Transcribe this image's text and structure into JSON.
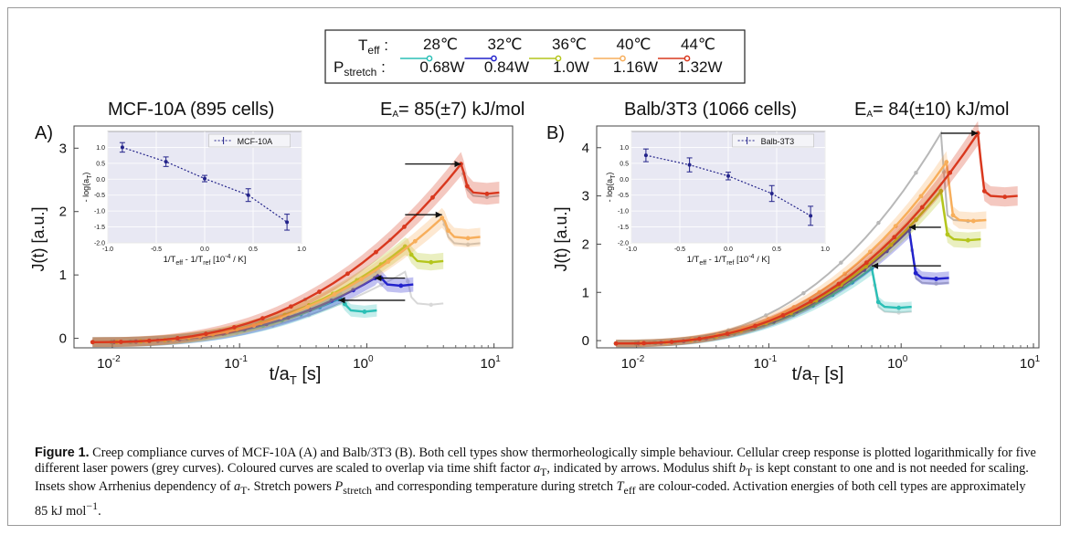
{
  "legend": {
    "t_label": "T",
    "t_sub": "eff",
    "p_label": "P",
    "p_sub": "stretch",
    "items": [
      {
        "temp": "28℃",
        "power": "0.68W",
        "color": "#2bbfb6"
      },
      {
        "temp": "32℃",
        "power": "0.84W",
        "color": "#2222cc"
      },
      {
        "temp": "36℃",
        "power": "1.0W",
        "color": "#b4c51c"
      },
      {
        "temp": "40℃",
        "power": "1.16W",
        "color": "#f7ae5b"
      },
      {
        "temp": "44℃",
        "power": "1.32W",
        "color": "#d9381e"
      }
    ]
  },
  "panels": [
    {
      "letter": "A)",
      "title": "MCF-10A  (895 cells)",
      "energy_prefix": "E",
      "energy_sub": "A",
      "energy_value": "= 85(±7) kJ/mol",
      "inset_legend": "MCF-10A"
    },
    {
      "letter": "B)",
      "title": "Balb/3T3 (1066 cells)",
      "energy_prefix": "E",
      "energy_sub": "A",
      "energy_value": "= 84(±10) kJ/mol",
      "inset_legend": "Balb-3T3"
    }
  ],
  "axes": {
    "ylabel": "J(t) [a.u.]",
    "xlabel_main": "t/a",
    "xlabel_sub": "T",
    "xlabel_unit": " [s]",
    "x_ticks": [
      {
        "base": "10",
        "exp": "-2"
      },
      {
        "base": "10",
        "exp": "-1"
      },
      {
        "base": "10",
        "exp": "0"
      },
      {
        "base": "10",
        "exp": "1"
      }
    ],
    "inset_ylabel": "- log(a",
    "inset_ylabel_sub": "T",
    "inset_xlabel": "1/T",
    "inset_xlabel_sub1": "eff",
    "inset_xlabel_mid": " - 1/T",
    "inset_xlabel_sub2": "ref",
    "inset_xlabel_unit": " [10",
    "inset_xlabel_exp": "-4",
    "inset_xlabel_end": " / K]",
    "inset_x_ticks": [
      "-1.0",
      "-0.5",
      "0.0",
      "0.5",
      "1.0"
    ],
    "inset_y_ticks": [
      "1.0",
      "0.5",
      "0.0",
      "-0.5",
      "-1.0",
      "-1.5",
      "-2.0"
    ]
  },
  "caption": {
    "label": "Figure 1.",
    "t1": " Creep compliance curves of MCF-10A (A) and Balb/3T3 (B). Both cell types show thermorheologically simple behaviour. Cellular creep response is plotted logarithmically for five different laser powers (grey curves). Coloured curves are scaled to overlap via time shift factor ",
    "aT_a": "a",
    "aT_T": "T",
    "t2": ", indicated by arrows. Modulus shift ",
    "bT_b": "b",
    "bT_T": "T",
    "t3": " is kept constant to one and is not needed for scaling. Insets show Arrhenius dependency of ",
    "t4": ". Stretch powers ",
    "P": "P",
    "P_sub": "stretch",
    "t5": " and corresponding temperature during stretch ",
    "T": "T",
    "T_sub": "eff",
    "t6": " are colour-coded. Activation energies of both cell types are approximately 85 kJ mol",
    "t6_exp": "−1",
    "t7": "."
  },
  "chart_data": [
    {
      "type": "line",
      "title": "MCF-10A  (895 cells)",
      "xlabel": "t/aT [s]",
      "ylabel": "J(t) [a.u.]",
      "xscale": "log",
      "xlim": [
        0.005,
        14
      ],
      "ylim": [
        -0.15,
        3.35
      ],
      "y_ticks": [
        0,
        1,
        2,
        3
      ],
      "stretch_end": [
        0.6,
        1.16,
        2.0,
        3.9,
        5.5
      ],
      "peak": [
        0.62,
        0.95,
        1.45,
        1.9,
        2.75
      ],
      "plateau": [
        0.44,
        0.85,
        1.22,
        1.6,
        2.3
      ],
      "grey_stretch_end": [
        2.0,
        3.9,
        5.5
      ],
      "grey_peak": [
        1.05,
        1.9,
        2.75
      ],
      "grey_plateau": [
        0.55,
        1.5,
        2.25
      ],
      "arrows": [
        {
          "from_x": 2.0,
          "to_x": 0.6,
          "y": 0.6
        },
        {
          "from_x": 2.0,
          "to_x": 1.16,
          "y": 0.95
        },
        {
          "from_x": 2.0,
          "to_x": 3.9,
          "y": 1.95
        },
        {
          "from_x": 2.0,
          "to_x": 5.5,
          "y": 2.75
        }
      ],
      "legend_position": "top-center",
      "series": [
        {
          "name": "28℃ / 0.68W"
        },
        {
          "name": "32℃ / 0.84W"
        },
        {
          "name": "36℃ / 1.0W"
        },
        {
          "name": "40℃ / 1.16W"
        },
        {
          "name": "44℃ / 1.32W"
        }
      ],
      "inset": {
        "type": "line",
        "legend": "MCF-10A",
        "x": [
          -0.85,
          -0.4,
          0.0,
          0.45,
          0.85
        ],
        "y": [
          1.0,
          0.55,
          0.02,
          -0.5,
          -1.35
        ],
        "yerr": [
          0.15,
          0.15,
          0.1,
          0.2,
          0.25
        ],
        "xlim": [
          -1.0,
          1.0
        ],
        "ylim": [
          -2.0,
          1.5
        ]
      }
    },
    {
      "type": "line",
      "title": "Balb/3T3 (1066 cells)",
      "xlabel": "t/aT [s]",
      "ylabel": "J(t) [a.u.]",
      "xscale": "log",
      "xlim": [
        0.005,
        11
      ],
      "ylim": [
        -0.15,
        4.45
      ],
      "y_ticks": [
        0,
        1,
        2,
        3,
        4
      ],
      "stretch_end": [
        0.6,
        1.15,
        2.0,
        2.2,
        3.8
      ],
      "peak": [
        1.5,
        2.3,
        3.1,
        3.7,
        4.3
      ],
      "plateau": [
        0.7,
        1.3,
        2.1,
        2.5,
        3.0
      ],
      "grey_stretch_end": [
        0.6,
        1.15,
        2.0
      ],
      "grey_peak": [
        1.5,
        2.35,
        4.3
      ],
      "grey_plateau": [
        0.6,
        1.2,
        2.5
      ],
      "arrows": [
        {
          "from_x": 2.0,
          "to_x": 0.6,
          "y": 1.55
        },
        {
          "from_x": 2.0,
          "to_x": 1.15,
          "y": 2.35
        },
        {
          "from_x": 2.0,
          "to_x": 3.8,
          "y": 4.3
        }
      ],
      "legend_position": "top-center",
      "series": [
        {
          "name": "28℃ / 0.68W"
        },
        {
          "name": "32℃ / 0.84W"
        },
        {
          "name": "36℃ / 1.0W"
        },
        {
          "name": "40℃ / 1.16W"
        },
        {
          "name": "44℃ / 1.32W"
        }
      ],
      "inset": {
        "type": "line",
        "legend": "Balb-3T3",
        "x": [
          -0.85,
          -0.4,
          0.0,
          0.45,
          0.85
        ],
        "y": [
          0.75,
          0.45,
          0.1,
          -0.45,
          -1.15
        ],
        "yerr": [
          0.2,
          0.22,
          0.12,
          0.25,
          0.3
        ],
        "xlim": [
          -1.0,
          1.0
        ],
        "ylim": [
          -2.0,
          1.5
        ]
      }
    }
  ]
}
